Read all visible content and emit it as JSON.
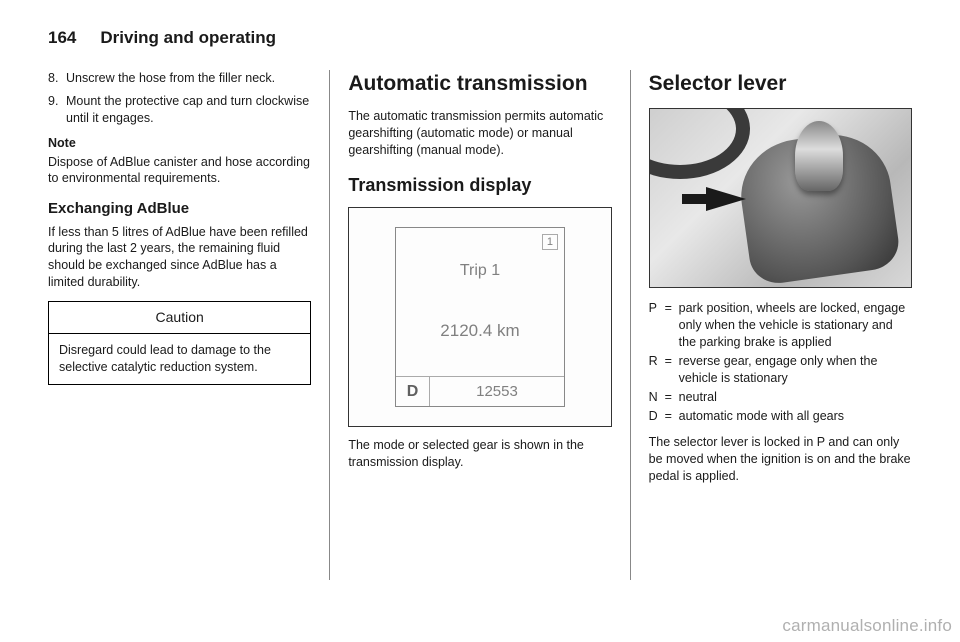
{
  "header": {
    "page_number": "164",
    "chapter": "Driving and operating"
  },
  "col1": {
    "steps": [
      {
        "n": "8.",
        "t": "Unscrew the hose from the filler neck."
      },
      {
        "n": "9.",
        "t": "Mount the protective cap and turn clockwise until it engages."
      }
    ],
    "note_head": "Note",
    "note_body": "Dispose of AdBlue canister and hose according to environmental requirements.",
    "h3": "Exchanging AdBlue",
    "exch_body": "If less than 5 litres of AdBlue have been refilled during the last 2 years, the remaining fluid should be exchanged since AdBlue has a limited durability.",
    "caution_head": "Caution",
    "caution_body": "Disregard could lead to damage to the selective catalytic reduction system."
  },
  "col2": {
    "h1": "Automatic transmission",
    "intro": "The automatic transmission permits automatic gearshifting (automatic mode) or manual gearshifting (manual mode).",
    "h2": "Transmission display",
    "display": {
      "corner": "1",
      "trip": "Trip 1",
      "km": "2120.4 km",
      "gear": "D",
      "odo": "12553"
    },
    "outro": "The mode or selected gear is shown in the transmission display."
  },
  "col3": {
    "h1": "Selector lever",
    "defs": [
      {
        "k": "P",
        "v": "park position, wheels are locked, engage only when the vehicle is stationary and the parking brake is applied"
      },
      {
        "k": "R",
        "v": "reverse gear, engage only when the vehicle is stationary"
      },
      {
        "k": "N",
        "v": "neutral"
      },
      {
        "k": "D",
        "v": "automatic mode with all gears"
      }
    ],
    "outro": "The selector lever is locked in P and can only be moved when the ignition is on and the brake pedal is applied."
  },
  "footer": "carmanualsonline.info"
}
